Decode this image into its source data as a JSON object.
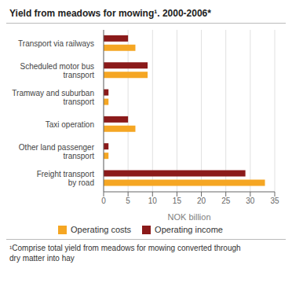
{
  "chart_data": {
    "type": "bar",
    "orientation": "horizontal",
    "title": "Yield from meadows for mowing¹. 2000-2006*",
    "categories": [
      "Freight transport\nby road",
      "Other land passenger\ntransport",
      "Taxi operation",
      "Tramway and suburban\ntransport",
      "Scheduled motor bus\ntransport",
      "Transport via railways"
    ],
    "series": [
      {
        "name": "Operating costs",
        "color": "#F5A623",
        "values": [
          33.0,
          1.0,
          6.5,
          1.0,
          9.0,
          6.5
        ]
      },
      {
        "name": "Operating income",
        "color": "#8B1A1A",
        "values": [
          29.0,
          1.0,
          5.0,
          1.0,
          9.0,
          5.0
        ]
      }
    ],
    "xlabel": "NOK billion",
    "xlim": [
      0,
      35
    ],
    "xticks": [
      0,
      5,
      10,
      15,
      20,
      25,
      30,
      35
    ],
    "grid": true,
    "legend": "bottom",
    "footnote": "¹Comprise total yield from meadows for mowing converted through\ndry matter into hay"
  }
}
